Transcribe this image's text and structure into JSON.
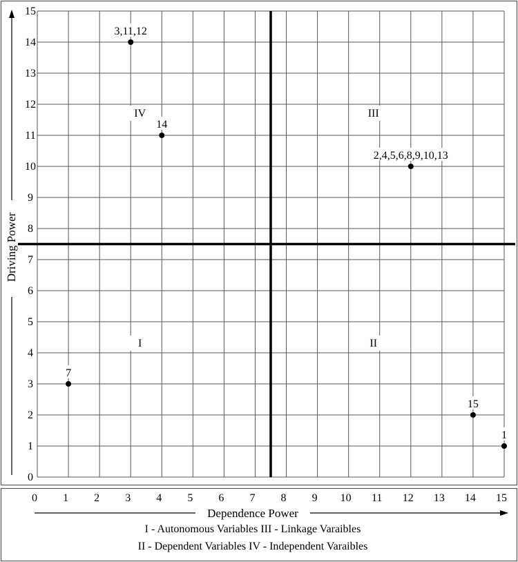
{
  "chart_data": {
    "type": "scatter",
    "xlabel": "Dependence Power",
    "ylabel": "Driving Power",
    "xlim": [
      0,
      15
    ],
    "ylim": [
      0,
      15
    ],
    "x_ticks": [
      "0",
      "1",
      "2",
      "3",
      "4",
      "5",
      "6",
      "7",
      "8",
      "9",
      "10",
      "11",
      "12",
      "13",
      "14",
      "15"
    ],
    "y_ticks": [
      "0",
      "1",
      "2",
      "3",
      "4",
      "5",
      "6",
      "7",
      "8",
      "9",
      "10",
      "11",
      "12",
      "13",
      "14",
      "15"
    ],
    "grid": true,
    "divider": {
      "x": 7.5,
      "y": 7.5
    },
    "points": [
      {
        "x": 3,
        "y": 14,
        "label": "3,11,12"
      },
      {
        "x": 4,
        "y": 11,
        "label": "14"
      },
      {
        "x": 12,
        "y": 10,
        "label": "2,4,5,6,8,9,10,13"
      },
      {
        "x": 1,
        "y": 3,
        "label": "7"
      },
      {
        "x": 14,
        "y": 2,
        "label": "15"
      },
      {
        "x": 15,
        "y": 1,
        "label": "1"
      }
    ],
    "quadrants": [
      {
        "label": "IV",
        "x": 3.3,
        "y": 11.6
      },
      {
        "label": "III",
        "x": 10.8,
        "y": 11.6
      },
      {
        "label": "I",
        "x": 3.3,
        "y": 4.2
      },
      {
        "label": "II",
        "x": 10.8,
        "y": 4.2
      }
    ],
    "legend_lines": [
      "I - Autonomous Variables III - Linkage Varaibles",
      "II - Dependent Variables IV - Independent Varaibles"
    ]
  }
}
